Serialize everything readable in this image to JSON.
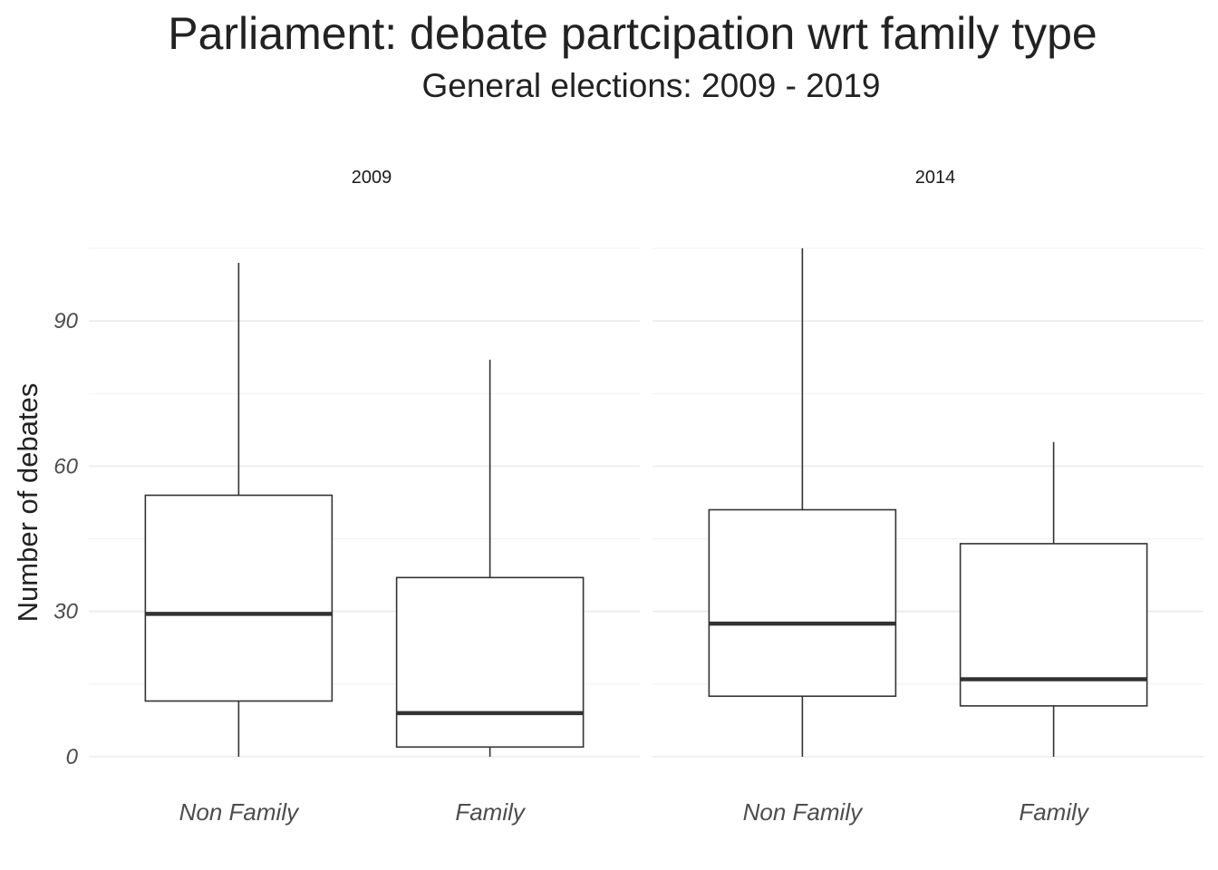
{
  "chart_data": {
    "type": "boxplot",
    "title": "Parliament: debate partcipation wrt family type",
    "subtitle": "General elections: 2009 - 2019",
    "ylabel": "Number of debates",
    "xlabel": "",
    "ylim": [
      0,
      105
    ],
    "yticks": [
      0,
      30,
      60,
      90
    ],
    "grid": true,
    "categories": [
      "Non Family",
      "Family"
    ],
    "facets": [
      {
        "label": "2009",
        "boxes": [
          {
            "category": "Non Family",
            "min": 0,
            "q1": 11.5,
            "median": 29.5,
            "q3": 54,
            "max": 102
          },
          {
            "category": "Family",
            "min": 0,
            "q1": 2,
            "median": 9,
            "q3": 37,
            "max": 82
          }
        ]
      },
      {
        "label": "2014",
        "boxes": [
          {
            "category": "Non Family",
            "min": 0,
            "q1": 12.5,
            "median": 27.5,
            "q3": 51,
            "max": 105
          },
          {
            "category": "Family",
            "min": 0,
            "q1": 10.5,
            "median": 16,
            "q3": 44,
            "max": 65
          }
        ]
      }
    ]
  }
}
